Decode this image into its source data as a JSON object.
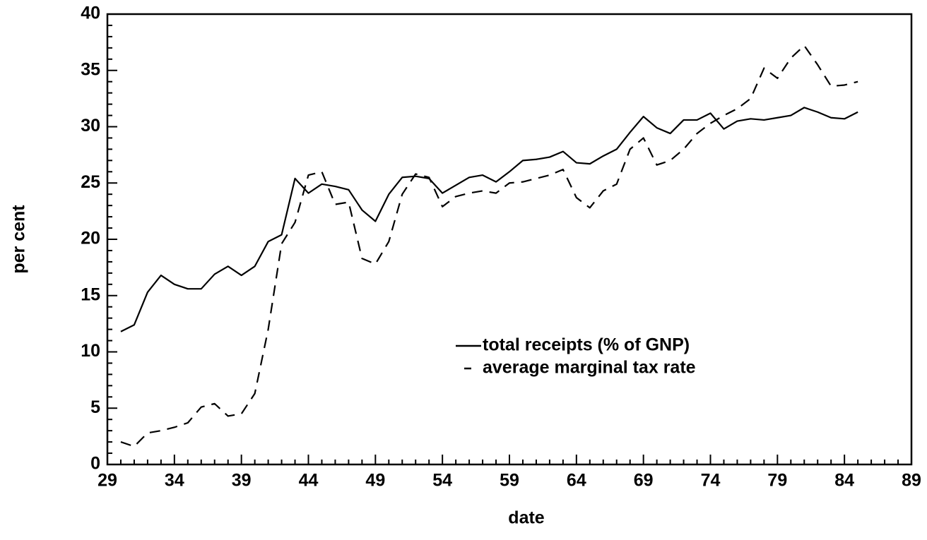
{
  "chart_data": {
    "type": "line",
    "xlabel": "date",
    "ylabel": "per cent",
    "x": [
      30,
      31,
      32,
      33,
      34,
      35,
      36,
      37,
      38,
      39,
      40,
      41,
      42,
      43,
      44,
      45,
      46,
      47,
      48,
      49,
      50,
      51,
      52,
      53,
      54,
      55,
      56,
      57,
      58,
      59,
      60,
      61,
      62,
      63,
      64,
      65,
      66,
      67,
      68,
      69,
      70,
      71,
      72,
      73,
      74,
      75,
      76,
      77,
      78,
      79,
      80,
      81,
      82,
      83,
      84,
      85
    ],
    "series": [
      {
        "name": "total receipts (% of GNP)",
        "color": "#000000",
        "dash": false,
        "values": [
          11.8,
          12.4,
          15.3,
          16.8,
          16.0,
          15.6,
          15.6,
          16.9,
          17.6,
          16.8,
          17.6,
          19.8,
          20.4,
          25.4,
          24.1,
          24.9,
          24.7,
          24.4,
          22.6,
          21.6,
          24.0,
          25.5,
          25.6,
          25.4,
          24.1,
          24.8,
          25.5,
          25.7,
          25.1,
          26.0,
          27.0,
          27.1,
          27.3,
          27.8,
          26.8,
          26.7,
          27.4,
          28.0,
          29.5,
          30.9,
          29.9,
          29.4,
          30.6,
          30.6,
          31.2,
          29.8,
          30.5,
          30.7,
          30.6,
          30.8,
          31.0,
          31.7,
          31.3,
          30.8,
          30.7,
          31.3
        ]
      },
      {
        "name": "average marginal tax rate",
        "color": "#000000",
        "dash": true,
        "values": [
          2.0,
          1.6,
          2.8,
          3.0,
          3.3,
          3.7,
          5.1,
          5.4,
          4.3,
          4.5,
          6.3,
          12.0,
          19.6,
          21.5,
          25.7,
          26.0,
          23.1,
          23.3,
          18.3,
          17.8,
          19.8,
          24.0,
          25.8,
          25.5,
          22.9,
          23.8,
          24.1,
          24.3,
          24.1,
          25.0,
          25.1,
          25.4,
          25.7,
          26.2,
          23.7,
          22.8,
          24.3,
          24.9,
          28.0,
          29.0,
          26.6,
          27.0,
          28.0,
          29.4,
          30.3,
          31.0,
          31.6,
          32.5,
          35.2,
          34.3,
          36.1,
          37.2,
          35.5,
          33.6,
          33.7,
          34.0
        ]
      }
    ],
    "xlim": [
      29,
      89
    ],
    "xticks": [
      29,
      34,
      39,
      44,
      49,
      54,
      59,
      64,
      69,
      74,
      79,
      84,
      89
    ],
    "xminorticks": [
      30,
      31,
      32,
      33,
      35,
      36,
      37,
      38,
      40,
      41,
      42,
      43,
      45,
      46,
      47,
      48,
      50,
      51,
      52,
      53,
      55,
      56,
      57,
      58,
      60,
      61,
      62,
      63,
      65,
      66,
      67,
      68,
      70,
      71,
      72,
      73,
      75,
      76,
      77,
      78,
      80,
      81,
      82,
      83,
      85,
      86,
      87,
      88
    ],
    "ylim": [
      0,
      40
    ],
    "yticks": [
      0,
      5,
      10,
      15,
      20,
      25,
      30,
      35,
      40
    ],
    "yminorticks": [
      1,
      2,
      3,
      4,
      6,
      7,
      8,
      9,
      11,
      12,
      13,
      14,
      16,
      17,
      18,
      19,
      21,
      22,
      23,
      24,
      26,
      27,
      28,
      29,
      31,
      32,
      33,
      34,
      36,
      37,
      38,
      39
    ],
    "grid": false,
    "legend": "lower right"
  }
}
